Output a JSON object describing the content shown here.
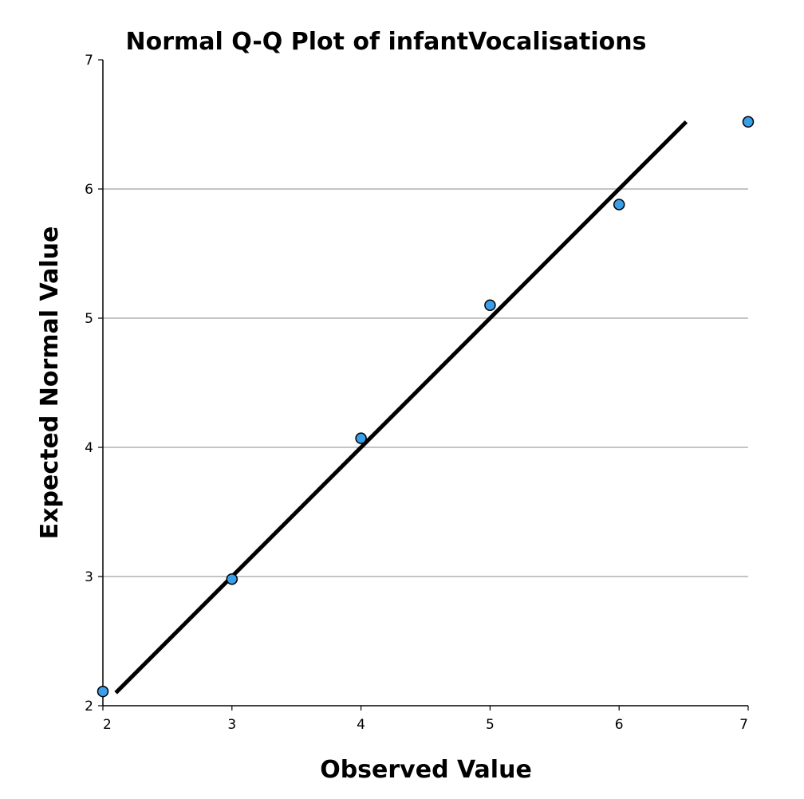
{
  "chart_data": {
    "type": "scatter",
    "title": "Normal Q-Q Plot of infantVocalisations",
    "xlabel": "Observed Value",
    "ylabel": "Expected Normal Value",
    "xlim": [
      2,
      7
    ],
    "ylim": [
      2,
      7
    ],
    "xticks": [
      "2",
      "3",
      "4",
      "5",
      "6",
      "7"
    ],
    "yticks": [
      "2",
      "3",
      "4",
      "5",
      "6",
      "7"
    ],
    "grid": "horizontal",
    "points": [
      {
        "x": 2,
        "y": 2.11
      },
      {
        "x": 3,
        "y": 2.98
      },
      {
        "x": 4,
        "y": 4.07
      },
      {
        "x": 5,
        "y": 5.1
      },
      {
        "x": 6,
        "y": 5.88
      },
      {
        "x": 7,
        "y": 6.52
      }
    ],
    "reference_line": {
      "x1": 2.1,
      "y1": 2.1,
      "x2": 6.52,
      "y2": 6.52
    },
    "colors": {
      "point_fill": "#3a9ee8",
      "point_stroke": "#000000",
      "line": "#000000",
      "grid": "#b0b0b0"
    }
  }
}
